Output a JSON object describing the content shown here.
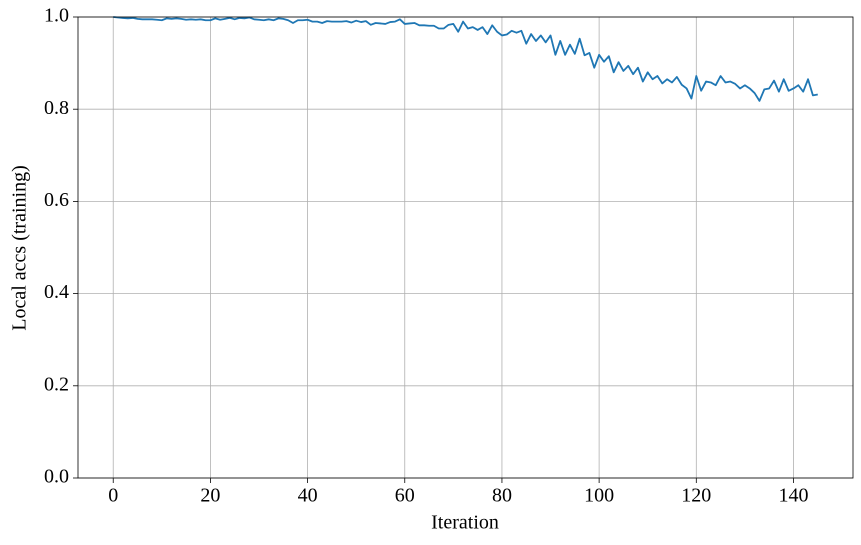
{
  "chart_data": {
    "type": "line",
    "xlabel": "Iteration",
    "ylabel": "Local accs (training)",
    "x": [
      0,
      1,
      2,
      3,
      4,
      5,
      6,
      7,
      8,
      9,
      10,
      11,
      12,
      13,
      14,
      15,
      16,
      17,
      18,
      19,
      20,
      21,
      22,
      23,
      24,
      25,
      26,
      27,
      28,
      29,
      30,
      31,
      32,
      33,
      34,
      35,
      36,
      37,
      38,
      39,
      40,
      41,
      42,
      43,
      44,
      45,
      46,
      47,
      48,
      49,
      50,
      51,
      52,
      53,
      54,
      55,
      56,
      57,
      58,
      59,
      60,
      61,
      62,
      63,
      64,
      65,
      66,
      67,
      68,
      69,
      70,
      71,
      72,
      73,
      74,
      75,
      76,
      77,
      78,
      79,
      80,
      81,
      82,
      83,
      84,
      85,
      86,
      87,
      88,
      89,
      90,
      91,
      92,
      93,
      94,
      95,
      96,
      97,
      98,
      99,
      100,
      101,
      102,
      103,
      104,
      105,
      106,
      107,
      108,
      109,
      110,
      111,
      112,
      113,
      114,
      115,
      116,
      117,
      118,
      119,
      120,
      121,
      122,
      123,
      124,
      125,
      126,
      127,
      128,
      129,
      130,
      131,
      132,
      133,
      134,
      135,
      136,
      137,
      138,
      139,
      140,
      141,
      142,
      143,
      144,
      145
    ],
    "values": [
      1.0,
      0.999,
      0.998,
      0.997,
      0.998,
      0.996,
      0.995,
      0.995,
      0.995,
      0.994,
      0.993,
      0.997,
      0.996,
      0.997,
      0.996,
      0.994,
      0.995,
      0.994,
      0.995,
      0.993,
      0.993,
      0.997,
      0.994,
      0.996,
      0.998,
      0.995,
      0.998,
      0.997,
      0.999,
      0.995,
      0.994,
      0.993,
      0.995,
      0.993,
      0.997,
      0.996,
      0.993,
      0.987,
      0.993,
      0.993,
      0.994,
      0.99,
      0.99,
      0.987,
      0.991,
      0.99,
      0.99,
      0.99,
      0.991,
      0.988,
      0.992,
      0.989,
      0.991,
      0.983,
      0.987,
      0.986,
      0.985,
      0.989,
      0.99,
      0.995,
      0.985,
      0.986,
      0.987,
      0.982,
      0.982,
      0.981,
      0.981,
      0.975,
      0.975,
      0.983,
      0.985,
      0.968,
      0.99,
      0.975,
      0.978,
      0.972,
      0.978,
      0.963,
      0.982,
      0.968,
      0.96,
      0.962,
      0.97,
      0.966,
      0.97,
      0.942,
      0.963,
      0.948,
      0.96,
      0.945,
      0.96,
      0.918,
      0.948,
      0.918,
      0.94,
      0.92,
      0.953,
      0.917,
      0.922,
      0.89,
      0.918,
      0.903,
      0.915,
      0.88,
      0.902,
      0.883,
      0.894,
      0.876,
      0.89,
      0.86,
      0.88,
      0.865,
      0.872,
      0.856,
      0.865,
      0.858,
      0.87,
      0.853,
      0.845,
      0.823,
      0.872,
      0.84,
      0.86,
      0.858,
      0.852,
      0.872,
      0.858,
      0.86,
      0.855,
      0.845,
      0.852,
      0.845,
      0.835,
      0.818,
      0.843,
      0.845,
      0.862,
      0.838,
      0.865,
      0.84,
      0.845,
      0.852,
      0.838,
      0.865,
      0.83,
      0.832
    ],
    "color": "#1f77b4",
    "xlim": [
      -7.25,
      152.25
    ],
    "xticks": [
      0,
      20,
      40,
      60,
      80,
      100,
      120,
      140
    ],
    "ylim": [
      0,
      1
    ],
    "yticks": [
      {
        "value": 0,
        "label": "0.0"
      },
      0.2,
      0.4,
      0.6,
      0.8,
      {
        "value": 1,
        "label": "1.0"
      }
    ],
    "grid": true
  }
}
